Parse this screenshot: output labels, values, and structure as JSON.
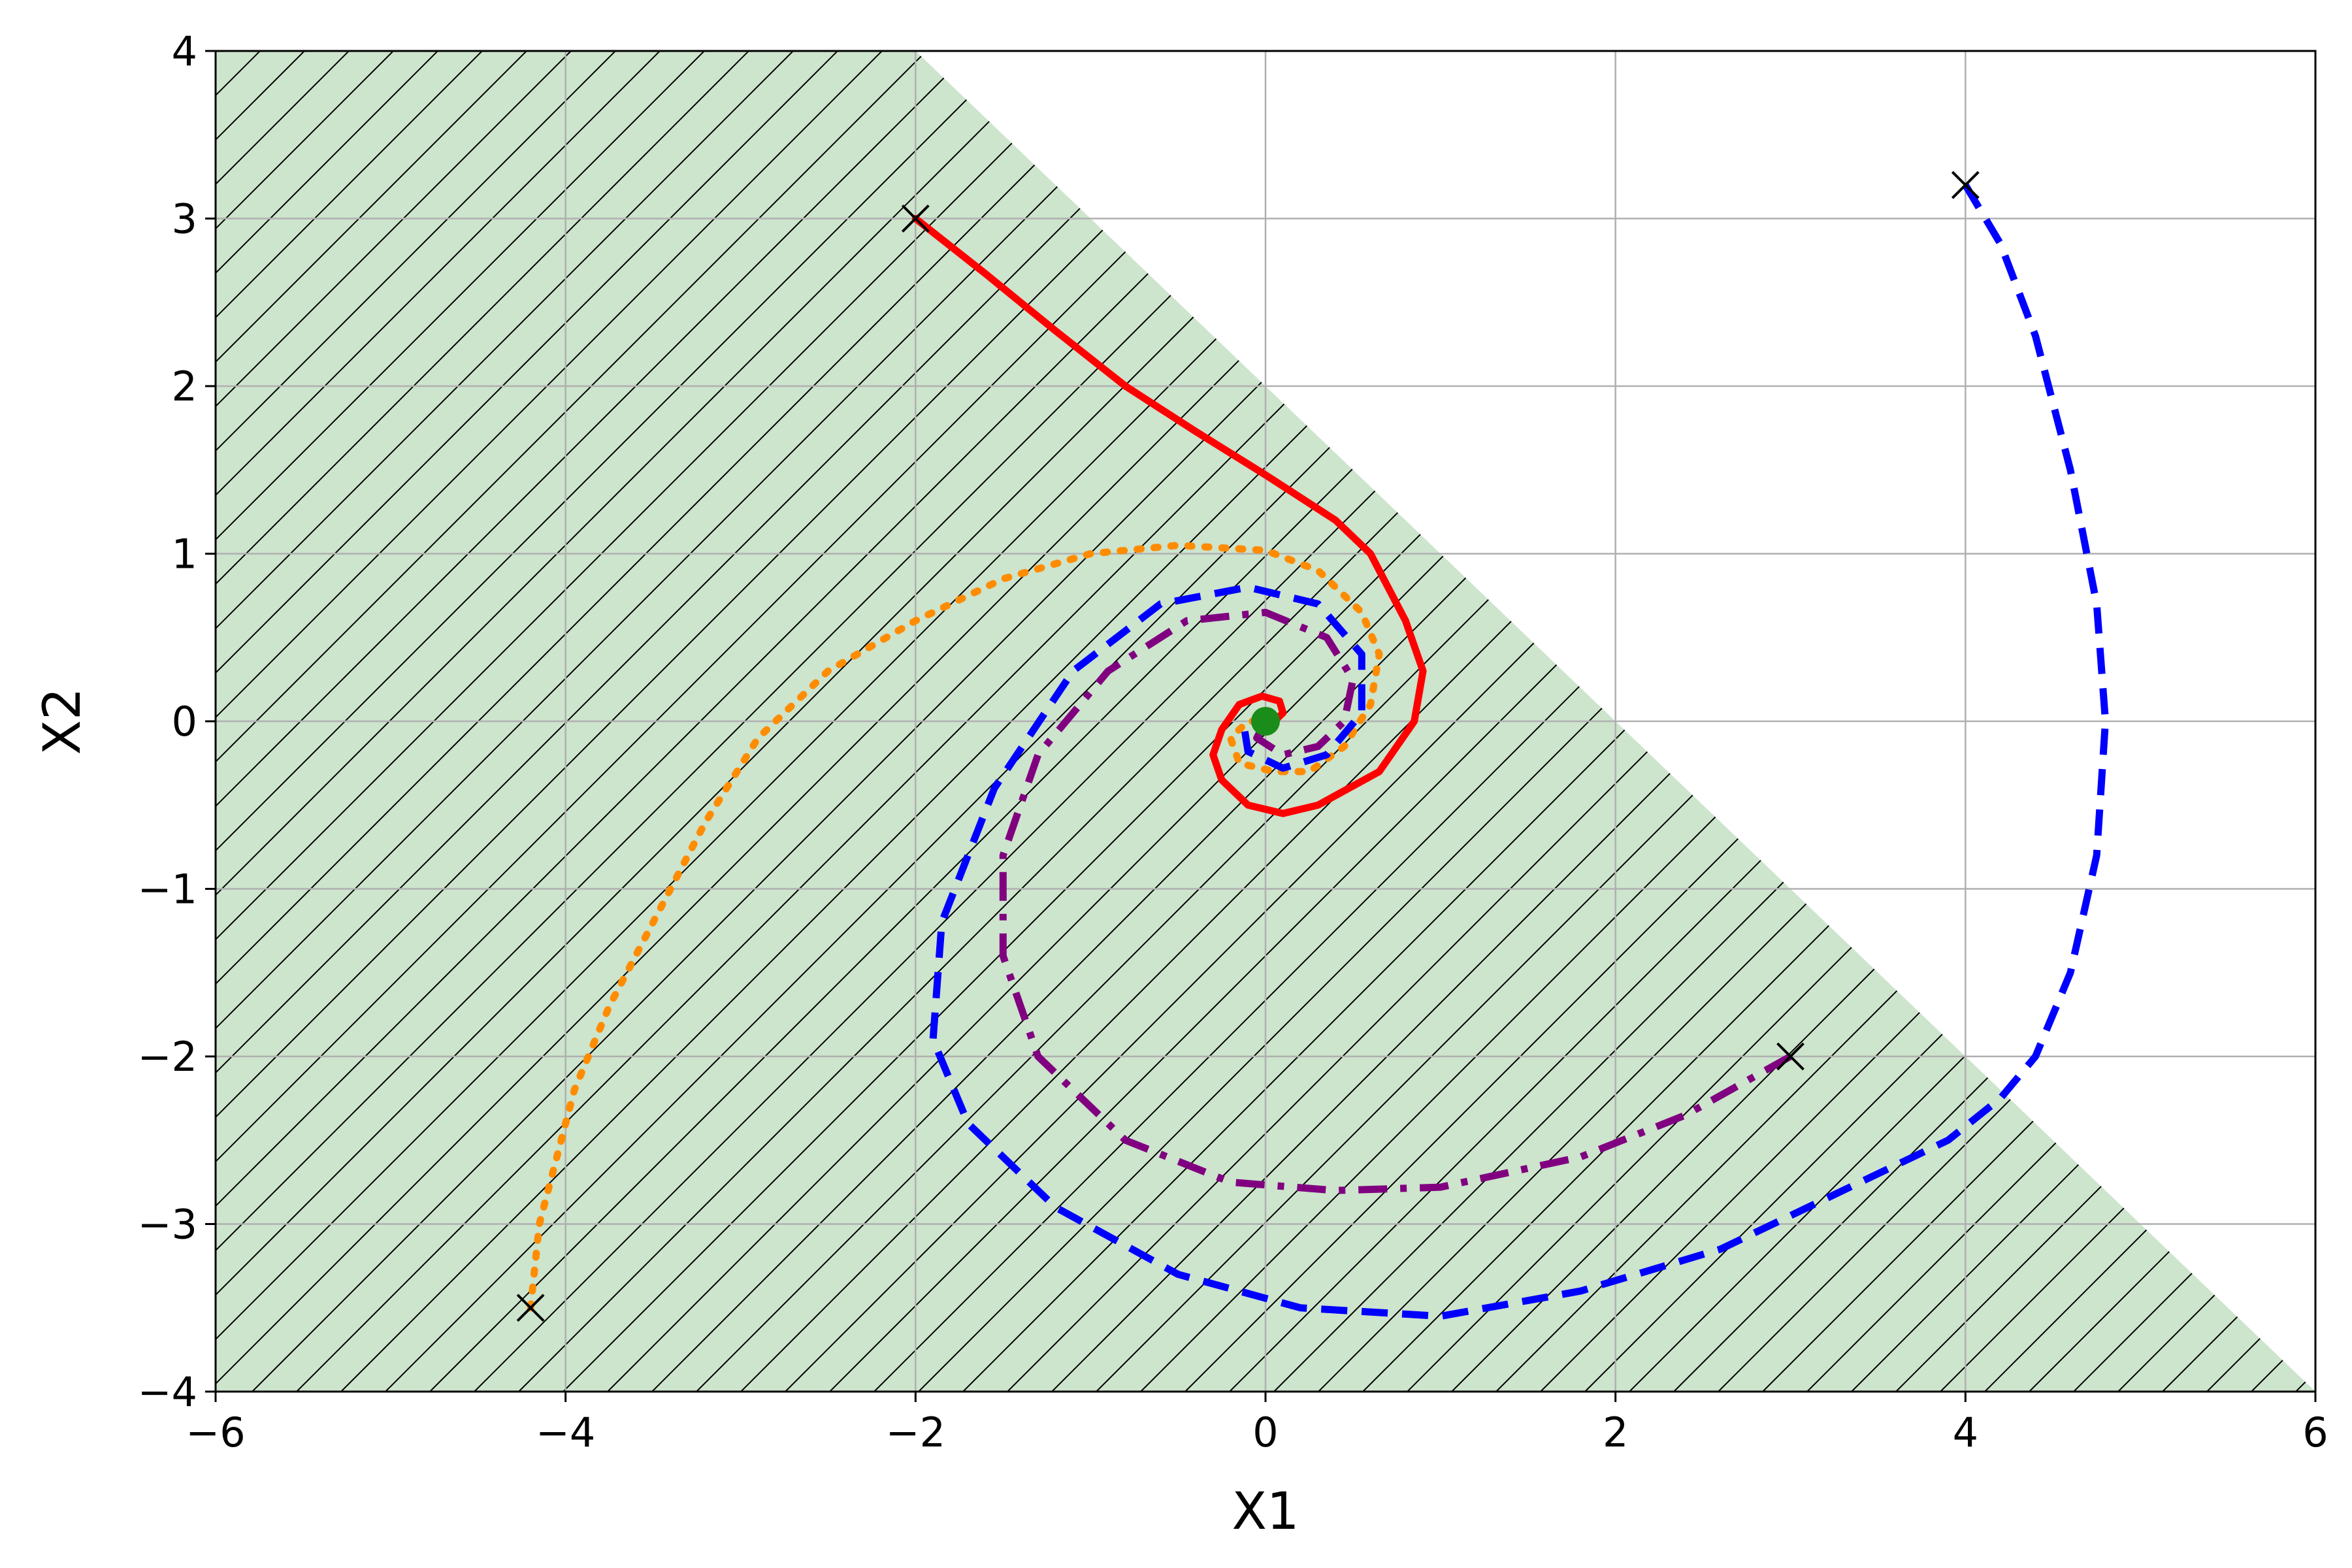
{
  "chart_data": {
    "type": "line",
    "title": "",
    "xlabel": "X1",
    "ylabel": "X2",
    "xlim": [
      -6,
      6
    ],
    "ylim": [
      -4,
      4
    ],
    "grid": true,
    "legend": "none",
    "xticks": [
      -6,
      -4,
      -2,
      0,
      2,
      4,
      6
    ],
    "yticks": [
      -4,
      -3,
      -2,
      -1,
      0,
      1,
      2,
      3,
      4
    ],
    "xtick_labels": [
      "−6",
      "−4",
      "−2",
      "0",
      "2",
      "4",
      "6"
    ],
    "ytick_labels": [
      "−4",
      "−3",
      "−2",
      "−1",
      "0",
      "1",
      "2",
      "3",
      "4"
    ],
    "shaded_region": {
      "description_values": [
        [
          -6,
          -4
        ],
        [
          -6,
          4
        ],
        [
          -2,
          4
        ],
        [
          6,
          -4
        ]
      ],
      "color": "#cde4cd",
      "hatch": "diagonal",
      "hatch_color": "#000000"
    },
    "equilibrium": {
      "x": 0,
      "y": 0,
      "color": "#1a8c1a"
    },
    "series": [
      {
        "color": "#ff0000",
        "style": "solid",
        "start": [
          -2,
          3
        ],
        "points": [
          [
            -2,
            3
          ],
          [
            -1.6,
            2.67
          ],
          [
            -1.2,
            2.33
          ],
          [
            -0.8,
            2.0
          ],
          [
            -0.4,
            1.73
          ],
          [
            0,
            1.47
          ],
          [
            0.4,
            1.2
          ],
          [
            0.6,
            1.0
          ],
          [
            0.8,
            0.6
          ],
          [
            0.9,
            0.3
          ],
          [
            0.85,
            0.0
          ],
          [
            0.65,
            -0.3
          ],
          [
            0.3,
            -0.5
          ],
          [
            0.1,
            -0.55
          ],
          [
            -0.1,
            -0.5
          ],
          [
            -0.25,
            -0.35
          ],
          [
            -0.3,
            -0.2
          ],
          [
            -0.25,
            -0.05
          ],
          [
            -0.15,
            0.1
          ],
          [
            -0.02,
            0.15
          ],
          [
            0.08,
            0.12
          ],
          [
            0.1,
            0.05
          ],
          [
            0.05,
            0.0
          ],
          [
            0.0,
            0.0
          ]
        ]
      },
      {
        "color": "#ff8c00",
        "style": "dotted",
        "start": [
          -4.2,
          -3.5
        ],
        "points": [
          [
            -4.2,
            -3.5
          ],
          [
            -4.15,
            -3.0
          ],
          [
            -4.05,
            -2.6
          ],
          [
            -3.95,
            -2.2
          ],
          [
            -3.75,
            -1.7
          ],
          [
            -3.5,
            -1.2
          ],
          [
            -3.2,
            -0.6
          ],
          [
            -2.9,
            -0.1
          ],
          [
            -2.5,
            0.3
          ],
          [
            -2.0,
            0.6
          ],
          [
            -1.5,
            0.85
          ],
          [
            -1.0,
            1.0
          ],
          [
            -0.5,
            1.05
          ],
          [
            0,
            1.02
          ],
          [
            0.3,
            0.9
          ],
          [
            0.55,
            0.65
          ],
          [
            0.65,
            0.4
          ],
          [
            0.6,
            0.1
          ],
          [
            0.45,
            -0.15
          ],
          [
            0.25,
            -0.3
          ],
          [
            0.05,
            -0.3
          ],
          [
            -0.15,
            -0.25
          ],
          [
            -0.2,
            -0.1
          ],
          [
            -0.1,
            0.0
          ],
          [
            0.0,
            0.0
          ]
        ]
      },
      {
        "color": "#0000ff",
        "style": "dashed",
        "start": [
          4,
          3.2
        ],
        "points": [
          [
            4,
            3.2
          ],
          [
            4.2,
            2.85
          ],
          [
            4.4,
            2.3
          ],
          [
            4.6,
            1.5
          ],
          [
            4.75,
            0.7
          ],
          [
            4.8,
            0.0
          ],
          [
            4.75,
            -0.8
          ],
          [
            4.6,
            -1.5
          ],
          [
            4.4,
            -2.0
          ],
          [
            4.2,
            -2.25
          ],
          [
            3.9,
            -2.5
          ],
          [
            3.3,
            -2.8
          ],
          [
            2.6,
            -3.15
          ],
          [
            1.8,
            -3.4
          ],
          [
            1.0,
            -3.55
          ],
          [
            0.2,
            -3.5
          ],
          [
            -0.5,
            -3.3
          ],
          [
            -1.2,
            -2.9
          ],
          [
            -1.7,
            -2.4
          ],
          [
            -1.9,
            -1.9
          ],
          [
            -1.85,
            -1.2
          ],
          [
            -1.55,
            -0.4
          ],
          [
            -1.1,
            0.3
          ],
          [
            -0.6,
            0.7
          ],
          [
            -0.1,
            0.8
          ],
          [
            0.3,
            0.7
          ],
          [
            0.55,
            0.4
          ],
          [
            0.55,
            0.05
          ],
          [
            0.35,
            -0.2
          ],
          [
            0.1,
            -0.28
          ],
          [
            -0.1,
            -0.18
          ],
          [
            -0.12,
            -0.05
          ],
          [
            0.0,
            0.0
          ]
        ]
      },
      {
        "color": "#800080",
        "style": "dashdot",
        "start": [
          3,
          -2
        ],
        "points": [
          [
            3,
            -2
          ],
          [
            2.4,
            -2.35
          ],
          [
            1.8,
            -2.6
          ],
          [
            1.0,
            -2.78
          ],
          [
            0.4,
            -2.8
          ],
          [
            -0.2,
            -2.75
          ],
          [
            -0.8,
            -2.5
          ],
          [
            -1.3,
            -2.0
          ],
          [
            -1.5,
            -1.4
          ],
          [
            -1.5,
            -0.8
          ],
          [
            -1.3,
            -0.2
          ],
          [
            -0.9,
            0.3
          ],
          [
            -0.45,
            0.6
          ],
          [
            0.0,
            0.65
          ],
          [
            0.35,
            0.5
          ],
          [
            0.5,
            0.25
          ],
          [
            0.45,
            0.0
          ],
          [
            0.3,
            -0.15
          ],
          [
            0.1,
            -0.2
          ],
          [
            -0.05,
            -0.1
          ],
          [
            0.0,
            0.0
          ]
        ]
      }
    ]
  }
}
